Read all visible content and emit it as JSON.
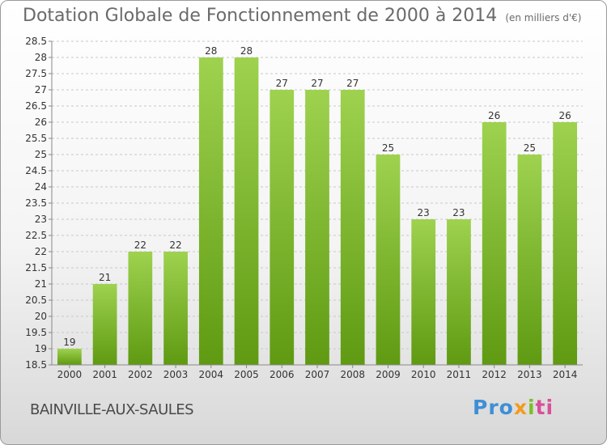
{
  "header": {
    "title": "Dotation Globale de Fonctionnement de 2000 à 2014",
    "unit": "(en milliers d'€)"
  },
  "footer": {
    "place": "BAINVILLE-AUX-SAULES",
    "logo": [
      "Pro",
      "x",
      "i",
      "ti"
    ]
  },
  "colors": {
    "bar_light": "#9ed24f",
    "bar_dark": "#5f9a12",
    "grid": "#c8c8c8",
    "title": "#6a6a6a"
  },
  "chart_data": {
    "type": "bar",
    "categories": [
      "2000",
      "2001",
      "2002",
      "2003",
      "2004",
      "2005",
      "2006",
      "2007",
      "2008",
      "2009",
      "2010",
      "2011",
      "2012",
      "2013",
      "2014"
    ],
    "values": [
      19,
      21,
      22,
      22,
      28,
      28,
      27,
      27,
      27,
      25,
      23,
      23,
      26,
      25,
      26
    ],
    "title": "Dotation Globale de Fonctionnement de 2000 à 2014",
    "subtitle": "(en milliers d'€)",
    "xlabel": "",
    "ylabel": "",
    "ylim": [
      18.5,
      28.5
    ],
    "yticks": [
      "18.5",
      "19",
      "19.5",
      "20",
      "20.5",
      "21",
      "21.5",
      "22",
      "22.5",
      "23",
      "23.5",
      "24",
      "24.5",
      "25",
      "25.5",
      "26",
      "26.5",
      "27",
      "27.5",
      "28",
      "28.5"
    ],
    "grid": true,
    "legend": "none"
  }
}
